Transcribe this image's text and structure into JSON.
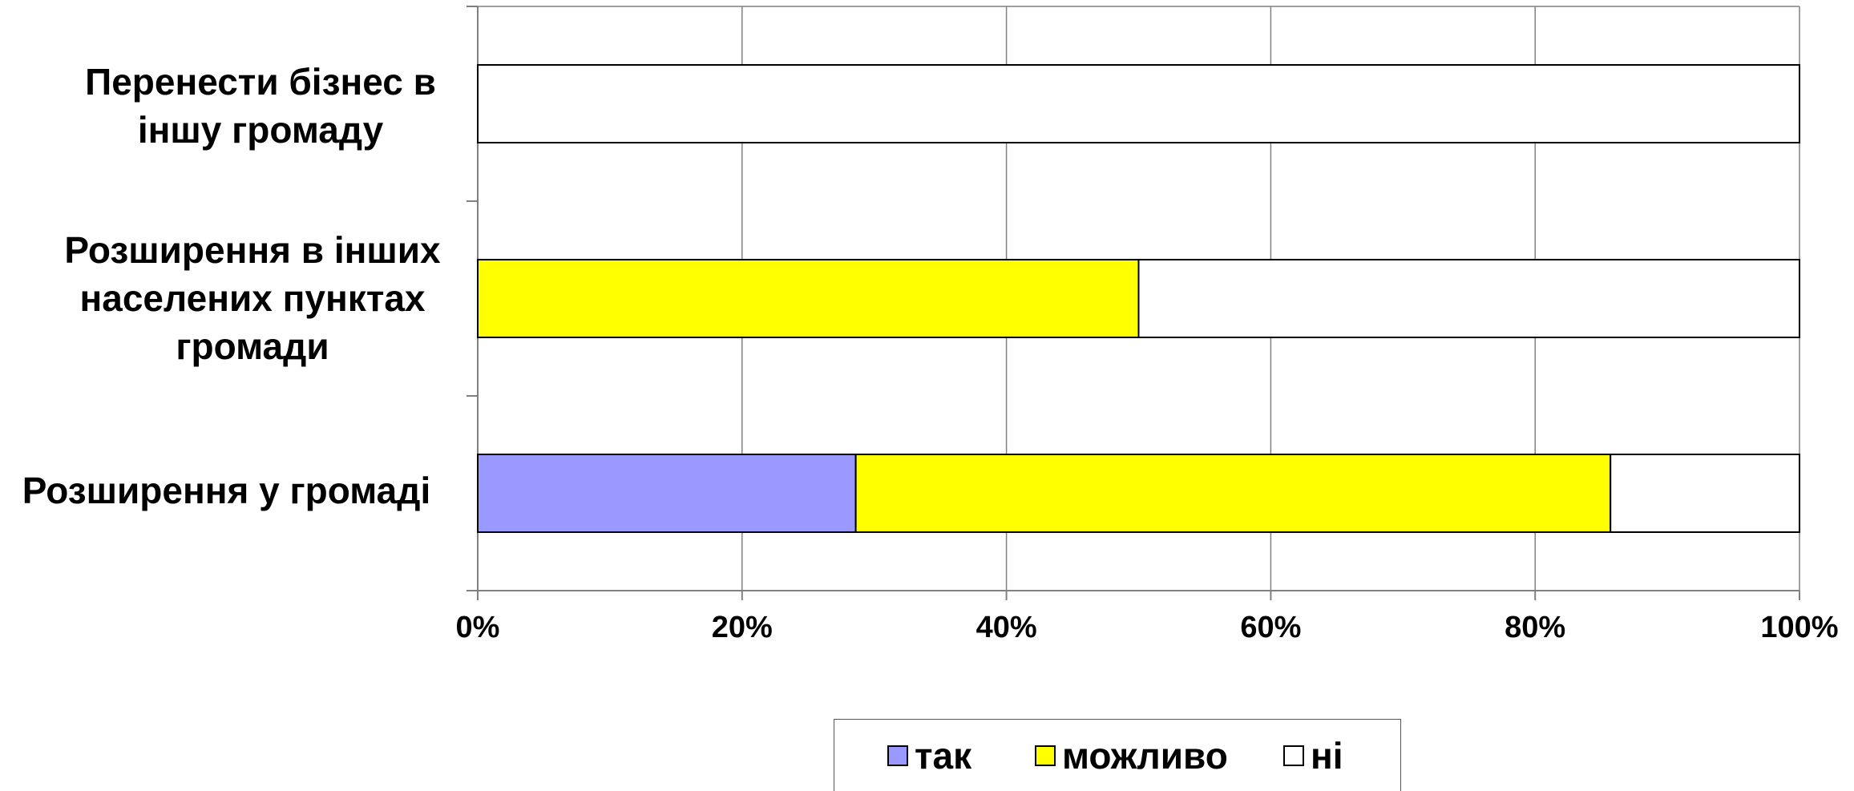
{
  "chart_data": {
    "type": "bar",
    "orientation": "horizontal",
    "stacked": "percent",
    "categories": [
      "Перенести бізнес в\nіншу громаду",
      "Розширення в інших\nнаселених пунктах\nгромади",
      "Розширення у громаді"
    ],
    "series": [
      {
        "name": "так",
        "color": "#9999FF",
        "values": [
          0,
          0,
          28.6
        ]
      },
      {
        "name": "можливо",
        "color": "#FFFF00",
        "values": [
          0,
          50,
          57.1
        ]
      },
      {
        "name": "ні",
        "color": "#FFFFFF",
        "values": [
          100,
          50,
          14.3
        ]
      }
    ],
    "xlim": [
      0,
      100
    ],
    "x_ticks": [
      "0%",
      "20%",
      "40%",
      "60%",
      "80%",
      "100%"
    ],
    "grid": true,
    "legend_position": "bottom"
  }
}
